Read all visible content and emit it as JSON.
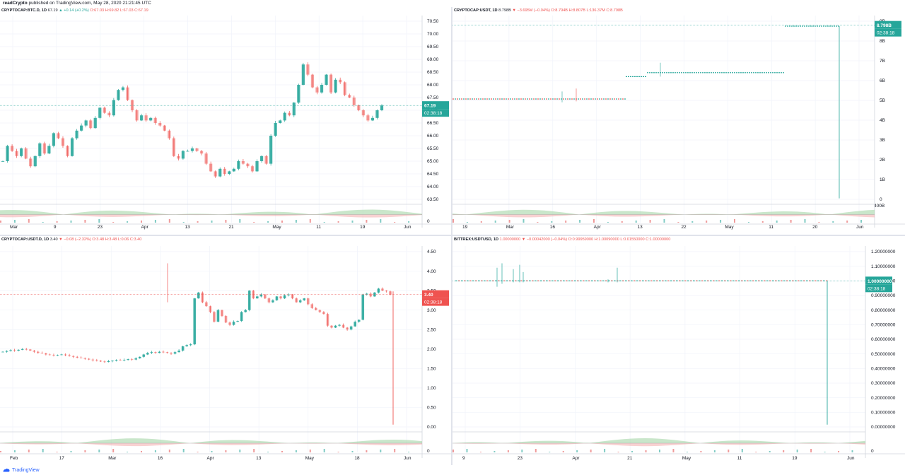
{
  "publish_line": {
    "author": "readCrypto",
    "text": "published on TradingView.com, May 28, 2020 21:21:45 UTC"
  },
  "footer": {
    "brand": "TradingView"
  },
  "colors": {
    "up": "#26a69a",
    "down": "#ef5350",
    "grid": "#f0f3fa",
    "axis_text": "#131722",
    "label_up": "#26a69a",
    "label_down": "#ef5350"
  },
  "panels": [
    {
      "header": {
        "symbol": "CRYPTOCAP:BTC.D, 1D",
        "last": "67.19",
        "change": "▲ +0.14 (+0.2%)",
        "open": "O:67.03",
        "high": "H:69.82",
        "low": "L:67.03",
        "close": "C:67.19",
        "change_dir": "up"
      },
      "price_label": "67.19",
      "countdown": "02:38:18",
      "label_color": "#26a69a"
    },
    {
      "header": {
        "symbol": "CRYPTOCAP:USDT, 1D",
        "last": "8.798B",
        "change": "▼ −3.695M (−0.04%)",
        "open": "O:8.794B",
        "high": "H:8.807B",
        "low": "L:136.37M",
        "close": "C:8.798B",
        "change_dir": "down"
      },
      "price_label": "8.798B",
      "countdown": "02:38:18",
      "label_color": "#26a69a"
    },
    {
      "header": {
        "symbol": "CRYPTOCAP:USDT.D, 1D",
        "last": "3.40",
        "change": "▼ −0.08 (−2.32%)",
        "open": "O:3.48",
        "high": "H:3.48",
        "low": "L:0.06",
        "close": "C:3.40",
        "change_dir": "down"
      },
      "price_label": "3.40",
      "countdown": "02:38:18",
      "label_color": "#ef5350"
    },
    {
      "header": {
        "symbol": "BITTREX:USDTUSD, 1D",
        "last": "1.00000000",
        "change": "▼ −0.00042000 (−0.04%)",
        "open": "O:0.99959000",
        "high": "H:1.00090000",
        "low": "L:0.01550000",
        "close": "C:1.00000000",
        "change_dir": "down"
      },
      "price_label": "1.00000000",
      "countdown": "02:38:18",
      "label_color": "#26a69a"
    }
  ],
  "chart_data": [
    {
      "type": "candlestick",
      "title": "CRYPTOCAP:BTC.D, 1D",
      "y_ticks": [
        "70.50",
        "70.00",
        "69.50",
        "69.00",
        "68.50",
        "68.00",
        "67.50",
        "67.00",
        "66.50",
        "66.00",
        "65.50",
        "65.00",
        "64.50",
        "64.00",
        "63.50"
      ],
      "ylim": [
        63.5,
        70.5
      ],
      "x_ticks": [
        "Mar",
        "9",
        "23",
        "Apr",
        "13",
        "21",
        "May",
        "11",
        "19",
        "Jun"
      ],
      "last_close": 67.19,
      "indicator_zero_tick": "0",
      "closes": [
        65.0,
        65.6,
        65.4,
        65.2,
        65.5,
        65.1,
        64.8,
        65.2,
        65.7,
        65.3,
        65.6,
        66.1,
        65.9,
        65.6,
        65.2,
        65.9,
        66.2,
        66.4,
        66.6,
        66.3,
        66.7,
        67.1,
        66.9,
        66.8,
        67.4,
        67.8,
        67.9,
        67.4,
        67.0,
        66.6,
        66.8,
        66.6,
        66.7,
        66.5,
        66.4,
        66.2,
        65.9,
        65.2,
        65.1,
        65.4,
        65.4,
        65.5,
        65.4,
        65.3,
        64.9,
        64.6,
        64.4,
        64.7,
        64.5,
        64.6,
        64.7,
        65.0,
        64.9,
        64.8,
        64.6,
        65.0,
        65.2,
        64.9,
        66.0,
        66.5,
        66.6,
        66.9,
        66.8,
        67.3,
        68.0,
        68.8,
        68.4,
        67.9,
        67.7,
        68.0,
        68.4,
        67.7,
        68.2,
        68.1,
        67.6,
        67.5,
        67.2,
        67.0,
        66.8,
        66.6,
        66.7,
        67.0,
        67.19
      ]
    },
    {
      "type": "candlestick",
      "title": "CRYPTOCAP:USDT, 1D",
      "y_ticks": [
        "9B",
        "8B",
        "7B",
        "6B",
        "5B",
        "4B",
        "3B",
        "2B",
        "1B",
        "0",
        "400B"
      ],
      "ylim": [
        0,
        9
      ],
      "x_ticks": [
        "19",
        "Mar",
        "16",
        "Apr",
        "13",
        "22",
        "May",
        "11",
        "20",
        "Jun"
      ],
      "last_close": 8.798
    },
    {
      "type": "candlestick",
      "title": "CRYPTOCAP:USDT.D, 1D",
      "y_ticks": [
        "4.50",
        "4.00",
        "3.50",
        "3.00",
        "2.50",
        "2.00",
        "1.50",
        "1.00",
        "0.50",
        "0.00"
      ],
      "ylim": [
        0,
        4.5
      ],
      "x_ticks": [
        "Feb",
        "17",
        "Mar",
        "16",
        "Apr",
        "13",
        "May",
        "18",
        "Jun"
      ],
      "last_close": 3.4,
      "indicator_zero_tick": "0",
      "closes": [
        1.93,
        1.95,
        1.97,
        1.96,
        1.98,
        2.0,
        1.99,
        1.96,
        1.93,
        1.9,
        1.89,
        1.86,
        1.85,
        1.84,
        1.85,
        1.86,
        1.84,
        1.82,
        1.8,
        1.78,
        1.77,
        1.75,
        1.73,
        1.71,
        1.7,
        1.68,
        1.67,
        1.69,
        1.7,
        1.72,
        1.71,
        1.72,
        1.74,
        1.73,
        1.76,
        1.8,
        1.86,
        1.9,
        1.92,
        1.9,
        1.93,
        1.92,
        1.9,
        1.88,
        1.92,
        1.96,
        2.07,
        2.1,
        2.12,
        3.3,
        3.45,
        3.2,
        3.1,
        2.95,
        2.7,
        3.0,
        2.85,
        2.68,
        2.62,
        2.7,
        2.72,
        2.95,
        3.0,
        3.5,
        3.3,
        3.35,
        3.4,
        3.3,
        3.2,
        3.25,
        3.35,
        3.3,
        3.38,
        3.4,
        3.3,
        3.2,
        3.25,
        3.3,
        3.15,
        3.05,
        3.0,
        2.95,
        2.9,
        2.6,
        2.55,
        2.6,
        2.62,
        2.55,
        2.5,
        2.58,
        2.7,
        2.75,
        3.4,
        3.42,
        3.35,
        3.45,
        3.55,
        3.5,
        3.48,
        3.4
      ]
    },
    {
      "type": "candlestick",
      "title": "BITTREX:USDTUSD, 1D",
      "y_ticks": [
        "1.20000000",
        "1.10000000",
        "1.00000000",
        "0.90000000",
        "0.80000000",
        "0.70000000",
        "0.60000000",
        "0.50000000",
        "0.40000000",
        "0.30000000",
        "0.20000000",
        "0.10000000",
        "0.00000000"
      ],
      "ylim": [
        0,
        1.2
      ],
      "x_ticks": [
        "9",
        "23",
        "Apr",
        "21",
        "May",
        "11",
        "19",
        "Jun"
      ],
      "last_close": 1.0,
      "indicator_zero_tick": "0"
    }
  ]
}
